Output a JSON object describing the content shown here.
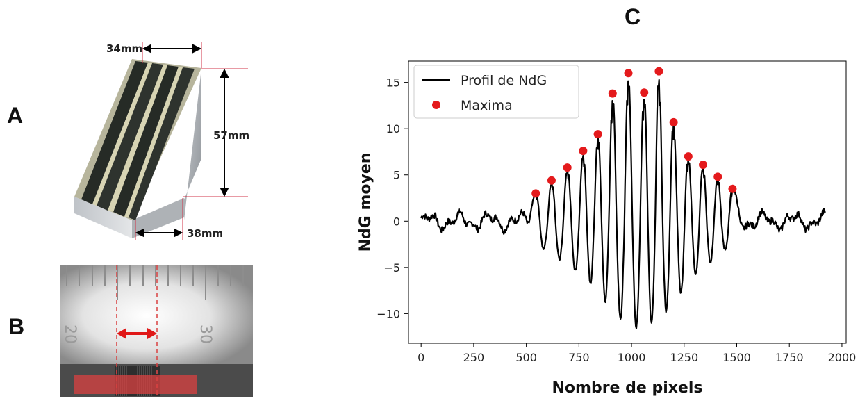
{
  "panels": {
    "a": {
      "letter": "A",
      "dim_top": "34mm",
      "dim_right": "57mm",
      "dim_bottom": "38mm",
      "accent_color": "#d1364a"
    },
    "b": {
      "letter": "B",
      "ruler_left_numeral": "20",
      "ruler_right_numeral": "30",
      "arrow_color": "#e01818",
      "band_color": "#d94040"
    },
    "c": {
      "letter": "C"
    }
  },
  "chart_data": {
    "type": "line",
    "title": "",
    "xlabel": "Nombre de pixels",
    "ylabel": "NdG moyen",
    "xlim": [
      -60,
      2020
    ],
    "ylim": [
      -13.2,
      17.3
    ],
    "xticks": [
      0,
      250,
      500,
      750,
      1000,
      1250,
      1500,
      1750,
      2000
    ],
    "yticks": [
      -10,
      -5,
      0,
      5,
      10,
      15
    ],
    "grid": false,
    "legend_position": "top-left",
    "series": [
      {
        "name": "Profil de NdG",
        "kind": "line",
        "color": "#000000",
        "x_range": [
          0,
          1920
        ],
        "peaks": [
          {
            "x": 545,
            "max": 3,
            "min": -2.5
          },
          {
            "x": 620,
            "max": 4.4,
            "min": -3.5
          },
          {
            "x": 695,
            "max": 5.8,
            "min": -4.8
          },
          {
            "x": 770,
            "max": 7.6,
            "min": -6
          },
          {
            "x": 840,
            "max": 9.4,
            "min": -7.5
          },
          {
            "x": 910,
            "max": 13.8,
            "min": -9.8
          },
          {
            "x": 985,
            "max": 16,
            "min": -11.5
          },
          {
            "x": 1060,
            "max": 13.9,
            "min": -11.5
          },
          {
            "x": 1130,
            "max": 16.2,
            "min": -10.5
          },
          {
            "x": 1200,
            "max": 10.7,
            "min": -9
          },
          {
            "x": 1270,
            "max": 7,
            "min": -6.5
          },
          {
            "x": 1340,
            "max": 6.1,
            "min": -5
          },
          {
            "x": 1410,
            "max": 4.8,
            "min": -3.8
          },
          {
            "x": 1480,
            "max": 3.5,
            "min": -2.5
          }
        ]
      },
      {
        "name": "Maxima",
        "kind": "scatter",
        "color": "#e41a1c",
        "x": [
          545,
          620,
          695,
          770,
          840,
          910,
          985,
          1060,
          1130,
          1200,
          1270,
          1340,
          1410,
          1480
        ],
        "y": [
          3,
          4.4,
          5.8,
          7.6,
          9.4,
          13.8,
          16,
          13.9,
          16.2,
          10.7,
          7,
          6.1,
          4.8,
          3.5
        ]
      }
    ]
  }
}
